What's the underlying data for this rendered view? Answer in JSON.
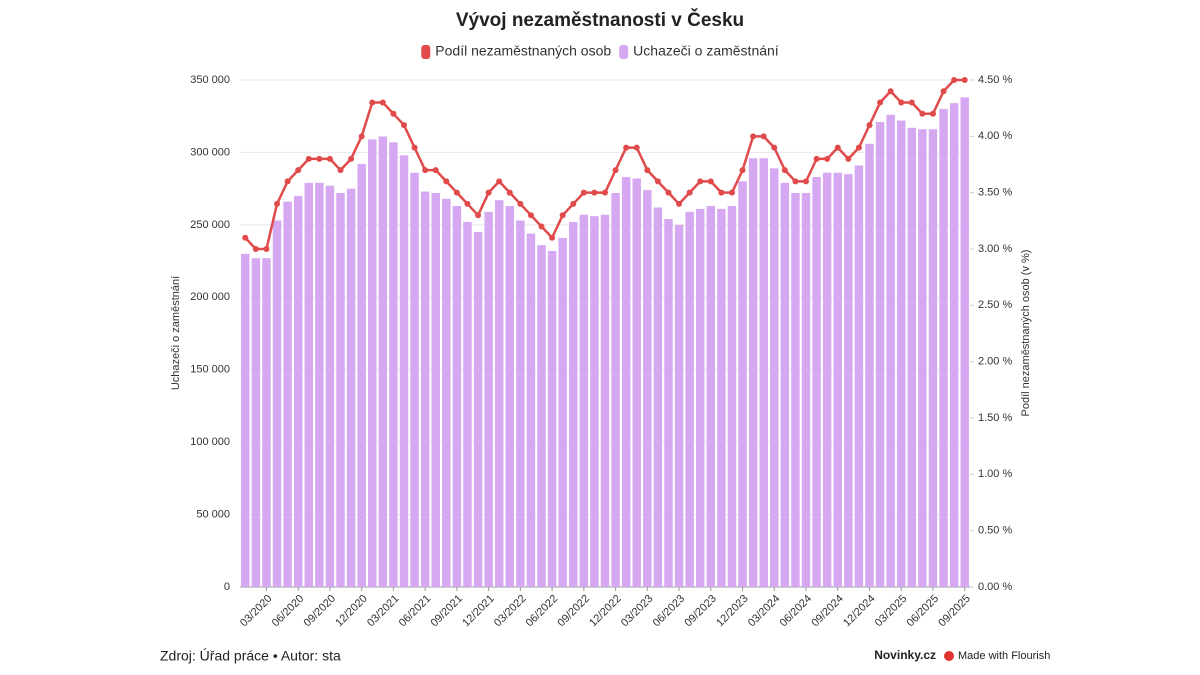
{
  "chart_data": {
    "type": "bar",
    "title": "Vývoj nezaměstnanosti v Česku",
    "y_label": "Uchazeči o zaměstnání",
    "y2_label": "Podíl nezaměstnaných osob (v %)",
    "source": "Zdroj: Úřad práce • Autor: sta",
    "publisher": "Novinky.cz",
    "credit": "Made with Flourish",
    "categories": [
      null,
      null,
      "03/2020",
      null,
      null,
      "06/2020",
      null,
      null,
      "09/2020",
      null,
      null,
      "12/2020",
      null,
      null,
      "03/2021",
      null,
      null,
      "06/2021",
      null,
      null,
      "09/2021",
      null,
      null,
      "12/2021",
      null,
      null,
      "03/2022",
      null,
      null,
      "06/2022",
      null,
      null,
      "09/2022",
      null,
      null,
      "12/2022",
      null,
      null,
      "03/2023",
      null,
      null,
      "06/2023",
      null,
      null,
      "09/2023",
      null,
      null,
      "12/2023",
      null,
      null,
      "03/2024",
      null,
      null,
      "06/2024",
      null,
      null,
      "09/2024",
      null,
      null,
      "12/2024",
      null,
      null,
      "03/2025",
      null,
      null,
      "06/2025",
      null,
      null,
      "09/2025"
    ],
    "series": [
      {
        "name": "Podíl nezaměstnaných osob",
        "type": "line",
        "axis": "y2",
        "color": "#e04a4a",
        "values": [
          3.1,
          3.0,
          3.0,
          3.4,
          3.6,
          3.7,
          3.8,
          3.8,
          3.8,
          3.7,
          3.8,
          4.0,
          4.3,
          4.3,
          4.2,
          4.1,
          3.9,
          3.7,
          3.7,
          3.6,
          3.5,
          3.4,
          3.3,
          3.5,
          3.6,
          3.5,
          3.4,
          3.3,
          3.2,
          3.1,
          3.3,
          3.4,
          3.5,
          3.5,
          3.5,
          3.7,
          3.9,
          3.9,
          3.7,
          3.6,
          3.5,
          3.4,
          3.5,
          3.6,
          3.6,
          3.5,
          3.5,
          3.7,
          4.0,
          4.0,
          3.9,
          3.7,
          3.6,
          3.6,
          3.8,
          3.8,
          3.9,
          3.8,
          3.9,
          4.1,
          4.3,
          4.4,
          4.3,
          4.3,
          4.2,
          4.2,
          4.4,
          4.5,
          4.5
        ]
      },
      {
        "name": "Uchazeči o zaměstnání",
        "type": "bar",
        "axis": "y",
        "color": "#d6a8f2",
        "values": [
          230000,
          227000,
          227000,
          253000,
          266000,
          270000,
          279000,
          279000,
          277000,
          272000,
          275000,
          292000,
          309000,
          311000,
          307000,
          298000,
          286000,
          273000,
          272000,
          268000,
          263000,
          252000,
          245000,
          259000,
          267000,
          263000,
          253000,
          244000,
          236000,
          232000,
          241000,
          252000,
          257000,
          256000,
          257000,
          272000,
          283000,
          282000,
          274000,
          262000,
          254000,
          250000,
          259000,
          261000,
          263000,
          261000,
          263000,
          280000,
          296000,
          296000,
          289000,
          279000,
          272000,
          272000,
          283000,
          286000,
          286000,
          285000,
          291000,
          306000,
          321000,
          326000,
          322000,
          317000,
          316000,
          316000,
          330000,
          334000,
          338000
        ]
      }
    ],
    "ylim": [
      0,
      350000
    ],
    "yticks": [
      0,
      {
        "value": 50000,
        "label": "50 000"
      },
      {
        "value": 100000,
        "label": "100 000"
      },
      {
        "value": 150000,
        "label": "150 000"
      },
      {
        "value": 200000,
        "label": "200 000"
      },
      {
        "value": 250000,
        "label": "250 000"
      },
      {
        "value": 300000,
        "label": "300 000"
      },
      {
        "value": 350000,
        "label": "350 000"
      }
    ],
    "y2lim": [
      0,
      4.5
    ],
    "y2ticks": [
      {
        "value": 0,
        "label": "0.00 %"
      },
      {
        "value": 0.5,
        "label": "0.50 %"
      },
      {
        "value": 1,
        "label": "1.00 %"
      },
      {
        "value": 1.5,
        "label": "1.50 %"
      },
      {
        "value": 2,
        "label": "2.00 %"
      },
      {
        "value": 2.5,
        "label": "2.50 %"
      },
      {
        "value": 3,
        "label": "3.00 %"
      },
      {
        "value": 3.5,
        "label": "3.50 %"
      },
      {
        "value": 4,
        "label": "4.00 %"
      },
      {
        "value": 4.5,
        "label": "4.50 %"
      }
    ],
    "grid": true
  }
}
